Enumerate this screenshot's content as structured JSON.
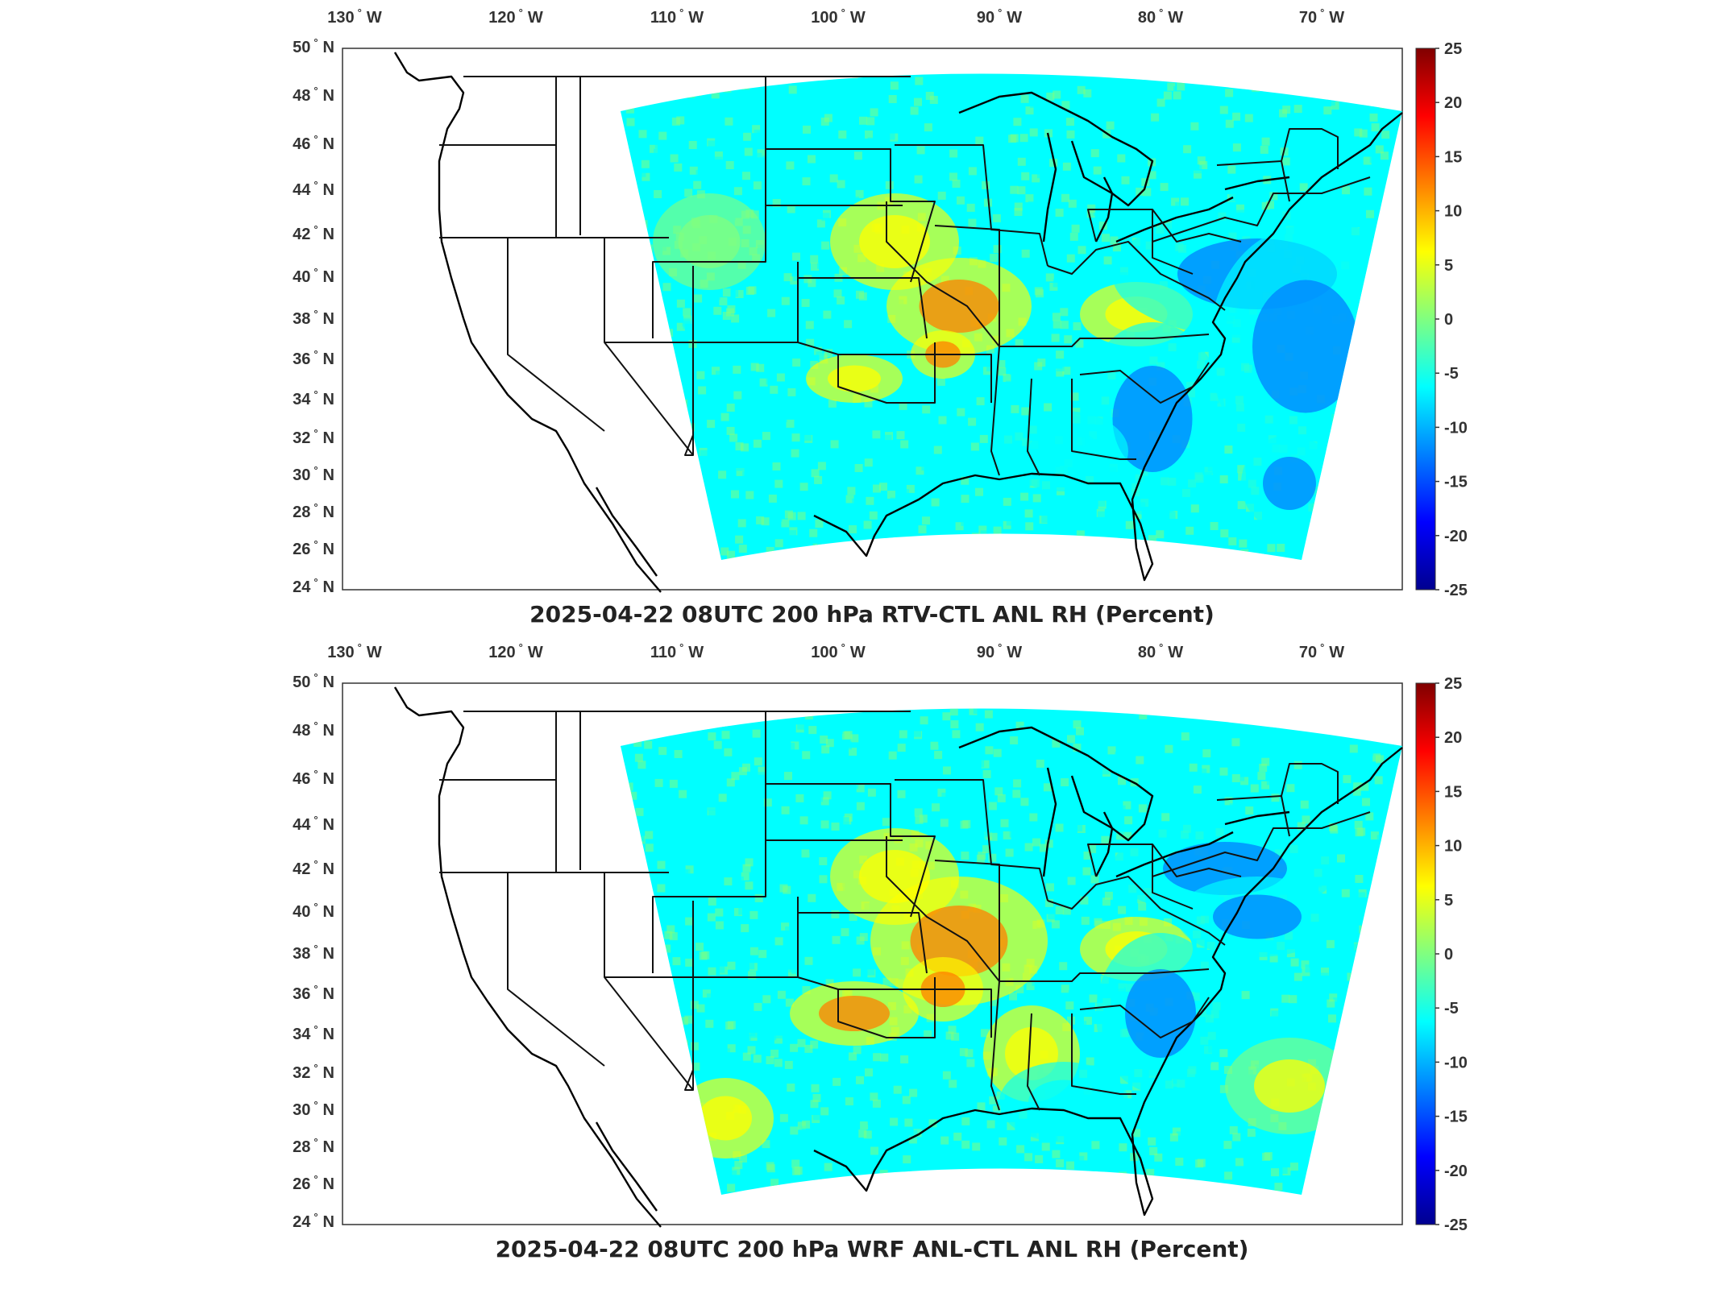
{
  "panels": [
    {
      "id": "rtv",
      "title": "2025-04-22 08UTC 200 hPa RTV-CTL ANL RH (Percent)",
      "lon_labels": [
        "130",
        "120",
        "110",
        "100",
        "90",
        "80",
        "70"
      ],
      "lon_suffix": "W",
      "lat_labels": [
        "50",
        "48",
        "46",
        "44",
        "42",
        "40",
        "38",
        "36",
        "34",
        "32",
        "30",
        "28",
        "26",
        "24"
      ],
      "lat_suffix": "N",
      "colorbar_ticks": [
        "25",
        "20",
        "15",
        "10",
        "5",
        "0",
        "-5",
        "-10",
        "-15",
        "-20",
        "-25"
      ]
    },
    {
      "id": "wrf",
      "title": "2025-04-22 08UTC 200 hPa WRF ANL-CTL ANL RH (Percent)",
      "lon_labels": [
        "130",
        "120",
        "110",
        "100",
        "90",
        "80",
        "70"
      ],
      "lon_suffix": "W",
      "lat_labels": [
        "50",
        "48",
        "46",
        "44",
        "42",
        "40",
        "38",
        "36",
        "34",
        "32",
        "30",
        "28",
        "26",
        "24"
      ],
      "lat_suffix": "N",
      "colorbar_ticks": [
        "25",
        "20",
        "15",
        "10",
        "5",
        "0",
        "-5",
        "-10",
        "-15",
        "-20",
        "-25"
      ]
    }
  ],
  "colormap": {
    "name": "jet",
    "range": [
      -25,
      25
    ],
    "stops": [
      "#00008f",
      "#0000ff",
      "#0080ff",
      "#00ffff",
      "#80ff80",
      "#ffff00",
      "#ff8000",
      "#ff0000",
      "#800000"
    ]
  }
}
